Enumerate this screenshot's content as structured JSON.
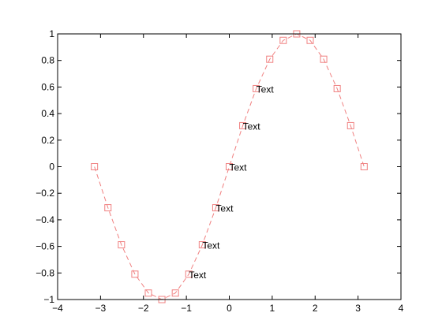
{
  "chart_data": {
    "type": "line",
    "title": "",
    "xlabel": "",
    "ylabel": "",
    "xlim": [
      -4,
      4
    ],
    "ylim": [
      -1,
      1
    ],
    "xticks": [
      -4,
      -3,
      -2,
      -1,
      0,
      1,
      2,
      3,
      4
    ],
    "xtick_labels": [
      "−4",
      "−3",
      "−2",
      "−1",
      "0",
      "1",
      "2",
      "3",
      "4"
    ],
    "yticks": [
      -1,
      -0.8,
      -0.6,
      -0.4,
      -0.2,
      0,
      0.2,
      0.4,
      0.6,
      0.8,
      1
    ],
    "ytick_labels": [
      "−1",
      "−0.8",
      "−0.6",
      "−0.4",
      "−0.2",
      "0",
      "0.2",
      "0.4",
      "0.6",
      "0.8",
      "1"
    ],
    "grid": false,
    "series": [
      {
        "color": "#f08080",
        "line_style": "dashed",
        "marker": "square",
        "x": [
          -3.1416,
          -2.8274,
          -2.5133,
          -2.1991,
          -1.885,
          -1.5708,
          -1.2566,
          -0.9425,
          -0.6283,
          -0.3142,
          0,
          0.3142,
          0.6283,
          0.9425,
          1.2566,
          1.5708,
          1.885,
          2.1991,
          2.5133,
          2.8274,
          3.1416
        ],
        "y": [
          0,
          -0.309,
          -0.5878,
          -0.809,
          -0.9511,
          -1,
          -0.9511,
          -0.809,
          -0.5878,
          -0.309,
          0,
          0.309,
          0.5878,
          0.809,
          0.9511,
          1,
          0.9511,
          0.809,
          0.5878,
          0.309,
          0
        ]
      }
    ],
    "annotations": [
      {
        "text": "Text",
        "x": -0.9425,
        "y": -0.809
      },
      {
        "text": "Text",
        "x": -0.6283,
        "y": -0.5878
      },
      {
        "text": "Text",
        "x": -0.3142,
        "y": -0.309
      },
      {
        "text": "Text",
        "x": 0,
        "y": 0
      },
      {
        "text": "Text",
        "x": 0.3142,
        "y": 0.309
      },
      {
        "text": "Text",
        "x": 0.6283,
        "y": 0.5878
      }
    ]
  }
}
